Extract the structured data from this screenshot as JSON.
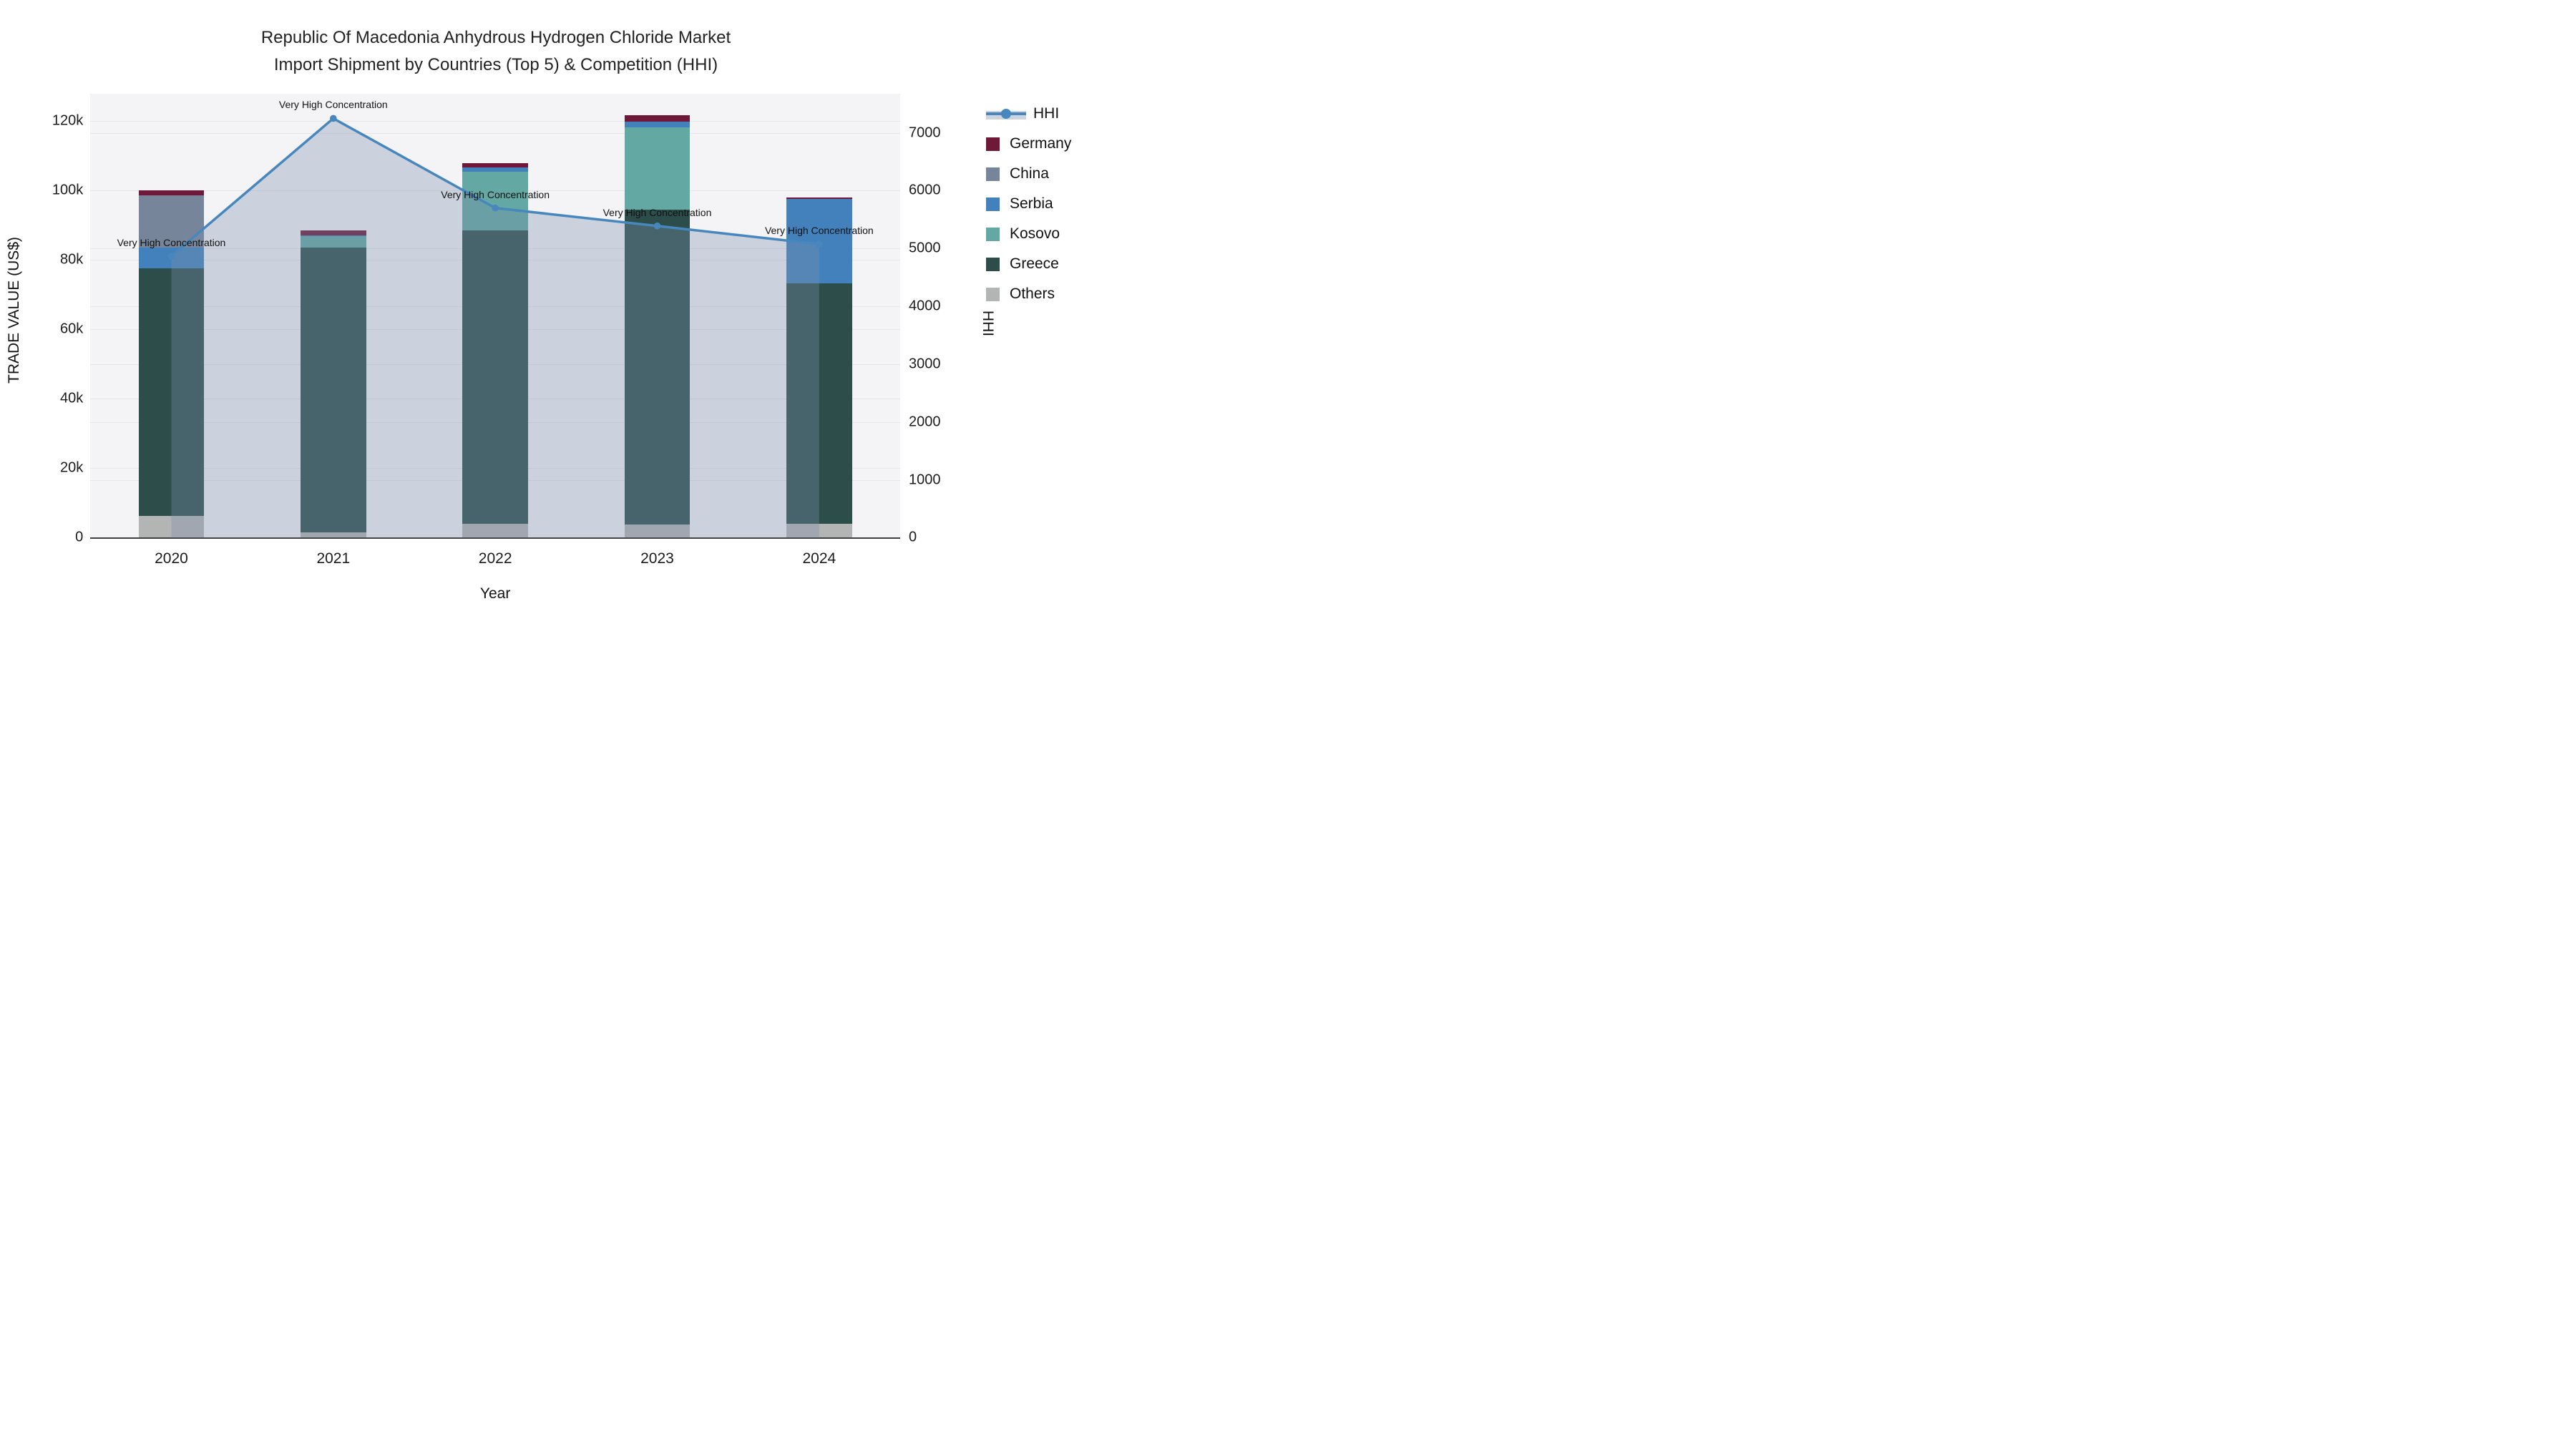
{
  "title_line1": "Republic Of Macedonia Anhydrous Hydrogen Chloride Market",
  "title_line2": "Import Shipment by Countries (Top 5) & Competition (HHI)",
  "chart_data": {
    "type": "bar",
    "subtype": "stacked-bars-with-line",
    "categories": [
      "2020",
      "2021",
      "2022",
      "2023",
      "2024"
    ],
    "series": [
      {
        "name": "Others",
        "color": "#b3b4b4",
        "values": [
          6200,
          1500,
          4000,
          3700,
          4000
        ]
      },
      {
        "name": "Greece",
        "color": "#2d4d4b",
        "values": [
          71400,
          82100,
          84600,
          90900,
          69200
        ]
      },
      {
        "name": "Kosovo",
        "color": "#63a8a3",
        "values": [
          0,
          3200,
          16900,
          23700,
          0
        ]
      },
      {
        "name": "Serbia",
        "color": "#4281bb",
        "values": [
          6000,
          400,
          1100,
          1600,
          24400
        ]
      },
      {
        "name": "China",
        "color": "#76859a",
        "values": [
          15100,
          0,
          0,
          0,
          0
        ]
      },
      {
        "name": "Germany",
        "color": "#701838",
        "values": [
          1300,
          1300,
          1300,
          1800,
          400
        ]
      }
    ],
    "bar_totals": [
      100000,
      88500,
      107900,
      121700,
      98000
    ],
    "line_series": {
      "name": "HHI",
      "color": "#4787bd",
      "fill_color": "rgba(124,145,172,0.34)",
      "values": [
        4870,
        7250,
        5700,
        5390,
        5075
      ]
    },
    "annotations": [
      "Very High Concentration",
      "Very High Concentration",
      "Very High Concentration",
      "Very High Concentration",
      "Very High Concentration"
    ],
    "xlabel": "Year",
    "ylabel_left": "TRADE VALUE (US$)",
    "ylabel_right": "HHI",
    "y_left": {
      "tick_labels": [
        "0",
        "20k",
        "40k",
        "60k",
        "80k",
        "100k",
        "120k"
      ],
      "tick_values": [
        0,
        20000,
        40000,
        60000,
        80000,
        100000,
        120000
      ],
      "range": [
        0,
        128000
      ]
    },
    "y_right": {
      "tick_labels": [
        "0",
        "1000",
        "2000",
        "3000",
        "4000",
        "5000",
        "6000",
        "7000"
      ],
      "tick_values": [
        0,
        1000,
        2000,
        3000,
        4000,
        5000,
        6000,
        7000
      ],
      "range": [
        0,
        7680
      ]
    },
    "grid": true,
    "legend_position": "right",
    "legend_items": [
      "HHI",
      "Germany",
      "China",
      "Serbia",
      "Kosovo",
      "Greece",
      "Others"
    ],
    "plot_bg": "#f4f4f6",
    "grid_color": "#e7e7ea"
  }
}
